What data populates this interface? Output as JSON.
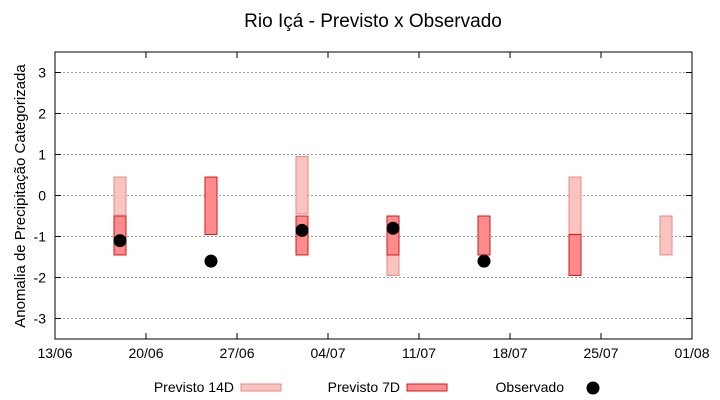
{
  "chart_data": {
    "type": "range-bar",
    "title": "Rio Içá - Previsto x Observado",
    "xlabel": "",
    "ylabel": "Anomalia de Precipitação Categorizada",
    "xlim": [
      "2024-06-13",
      "2024-08-01"
    ],
    "ylim": [
      -3.5,
      3.5
    ],
    "x_tick_labels": [
      "13/06",
      "20/06",
      "27/06",
      "04/07",
      "11/07",
      "18/07",
      "25/07",
      "01/08"
    ],
    "y_ticks": [
      -3,
      -2,
      -1,
      0,
      1,
      2,
      3
    ],
    "grid": true,
    "legend_position": "bottom",
    "series": [
      {
        "name": "Previsto 14D",
        "color": "#f9c4bf",
        "stroke": "#e88a84",
        "ranges": [
          {
            "x": "2024-06-18",
            "low": -1.45,
            "high": 0.45
          },
          {
            "x": "2024-07-02",
            "low": -0.45,
            "high": 0.95
          },
          {
            "x": "2024-07-09",
            "low": -1.95,
            "high": -0.5
          },
          {
            "x": "2024-07-23",
            "low": -0.95,
            "high": 0.45
          },
          {
            "x": "2024-07-30",
            "low": -1.45,
            "high": -0.5
          }
        ]
      },
      {
        "name": "Previsto 7D",
        "color": "#ff8c8c",
        "stroke": "#d01818",
        "ranges": [
          {
            "x": "2024-06-18",
            "low": -1.45,
            "high": -0.5
          },
          {
            "x": "2024-06-25",
            "low": -0.95,
            "high": 0.45
          },
          {
            "x": "2024-07-02",
            "low": -1.45,
            "high": -0.5
          },
          {
            "x": "2024-07-09",
            "low": -1.45,
            "high": -0.5
          },
          {
            "x": "2024-07-16",
            "low": -1.45,
            "high": -0.5
          },
          {
            "x": "2024-07-23",
            "low": -1.95,
            "high": -0.95
          }
        ]
      },
      {
        "name": "Observado",
        "color": "#000000",
        "points": [
          {
            "x": "2024-06-18",
            "y": -1.1
          },
          {
            "x": "2024-06-25",
            "y": -1.6
          },
          {
            "x": "2024-07-02",
            "y": -0.85
          },
          {
            "x": "2024-07-09",
            "y": -0.8
          },
          {
            "x": "2024-07-16",
            "y": -1.6
          }
        ]
      }
    ]
  }
}
